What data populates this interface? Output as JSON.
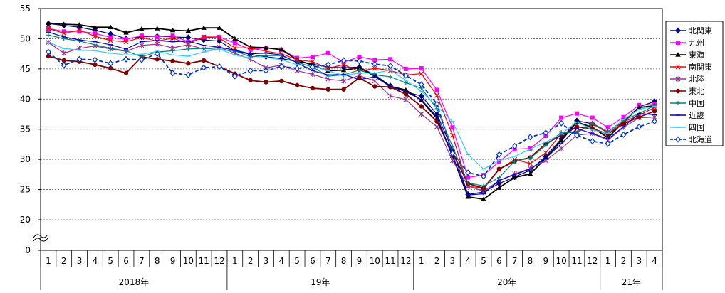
{
  "chart_data": {
    "type": "line",
    "ylim": [
      0,
      55
    ],
    "yticks": [
      0,
      20,
      25,
      30,
      35,
      40,
      45,
      50,
      55
    ],
    "y_axis_break": [
      1,
      19
    ],
    "grid": true,
    "legend_position": "right",
    "x_tick_labels": [
      "1",
      "2",
      "3",
      "4",
      "5",
      "6",
      "7",
      "8",
      "9",
      "10",
      "11",
      "12",
      "1",
      "2",
      "3",
      "4",
      "5",
      "6",
      "7",
      "8",
      "9",
      "10",
      "11",
      "12",
      "1",
      "2",
      "3",
      "4",
      "5",
      "6",
      "7",
      "8",
      "9",
      "10",
      "11",
      "12",
      "1",
      "2",
      "3",
      "4"
    ],
    "year_groups": [
      {
        "label": "2018年",
        "count": 12
      },
      {
        "label": "19年",
        "count": 12
      },
      {
        "label": "20年",
        "count": 12
      },
      {
        "label": "21年",
        "count": 4
      }
    ],
    "series": [
      {
        "name": "北関東",
        "color": "#000080",
        "marker": "diamond",
        "dashed": false,
        "values": [
          52.5,
          52.2,
          51.9,
          51.4,
          50.8,
          50.0,
          50.3,
          50.4,
          50.3,
          50.2,
          49.8,
          49.6,
          48.0,
          47.4,
          47.0,
          46.7,
          46.2,
          45.8,
          45.3,
          45.2,
          45.3,
          44.0,
          42.2,
          41.2,
          40.5,
          37.5,
          31.5,
          24.2,
          24.6,
          26.0,
          27.1,
          28.2,
          30.5,
          33.4,
          36.4,
          35.9,
          34.4,
          36.3,
          38.7,
          39.6
        ]
      },
      {
        "name": "九州",
        "color": "#ff00ff",
        "marker": "square",
        "dashed": false,
        "values": [
          51.7,
          51.2,
          51.2,
          50.9,
          50.2,
          49.9,
          50.5,
          50.3,
          50.5,
          49.5,
          50.3,
          50.3,
          49.3,
          48.2,
          48.5,
          48.2,
          46.8,
          47.0,
          47.6,
          46.1,
          47.0,
          46.5,
          46.6,
          45.0,
          45.1,
          41.5,
          35.3,
          27.0,
          27.4,
          29.6,
          31.7,
          31.8,
          33.9,
          36.9,
          37.6,
          36.9,
          35.3,
          37.0,
          39.0,
          39.1
        ]
      },
      {
        "name": "東海",
        "color": "#000000",
        "marker": "triangle",
        "dashed": false,
        "values": [
          52.6,
          52.4,
          52.3,
          51.9,
          51.9,
          51.0,
          51.6,
          51.7,
          51.4,
          51.3,
          51.8,
          51.8,
          50.0,
          48.6,
          48.5,
          48.2,
          46.5,
          45.6,
          44.7,
          44.8,
          45.2,
          43.8,
          42.1,
          41.5,
          39.8,
          36.8,
          30.6,
          23.8,
          23.4,
          25.3,
          27.0,
          27.6,
          30.2,
          33.1,
          36.2,
          35.3,
          33.6,
          36.2,
          38.6,
          38.9
        ]
      },
      {
        "name": "南関東",
        "color": "#ff0000",
        "marker": "x",
        "dashed": false,
        "values": [
          51.7,
          50.9,
          51.4,
          50.4,
          49.7,
          49.5,
          50.2,
          49.6,
          50.1,
          49.2,
          50.3,
          50.1,
          48.5,
          48.5,
          47.9,
          47.5,
          46.5,
          46.2,
          45.1,
          45.7,
          44.6,
          45.1,
          44.7,
          44.0,
          44.2,
          40.6,
          34.0,
          25.5,
          25.3,
          28.3,
          30.0,
          29.3,
          31.1,
          34.3,
          34.6,
          35.9,
          34.4,
          36.2,
          37.3,
          38.6
        ]
      },
      {
        "name": "北陸",
        "color": "#993399",
        "marker": "star",
        "dashed": false,
        "values": [
          49.4,
          47.6,
          48.4,
          48.8,
          48.3,
          47.9,
          48.9,
          49.1,
          48.5,
          49.0,
          48.3,
          48.6,
          47.6,
          46.6,
          45.2,
          45.6,
          44.7,
          44.1,
          43.3,
          43.0,
          43.9,
          43.0,
          40.5,
          39.9,
          37.5,
          35.4,
          29.8,
          25.6,
          24.7,
          26.5,
          27.6,
          28.5,
          29.8,
          31.8,
          34.0,
          34.3,
          33.2,
          35.3,
          36.9,
          37.0
        ]
      },
      {
        "name": "東北",
        "color": "#800000",
        "marker": "circle",
        "dashed": false,
        "values": [
          47.1,
          46.4,
          46.2,
          45.7,
          45.1,
          44.3,
          47.0,
          46.6,
          46.3,
          45.9,
          46.4,
          45.4,
          44.2,
          43.1,
          42.8,
          43.0,
          42.3,
          41.8,
          41.6,
          41.6,
          43.5,
          42.1,
          42.0,
          40.8,
          38.8,
          36.3,
          31.1,
          26.0,
          25.2,
          28.4,
          29.7,
          30.3,
          32.6,
          34.0,
          35.4,
          35.1,
          34.2,
          35.9,
          37.0,
          38.0
        ]
      },
      {
        "name": "中国",
        "color": "#008080",
        "marker": "plus",
        "dashed": false,
        "values": [
          50.6,
          50.0,
          49.6,
          49.0,
          48.4,
          48.0,
          47.0,
          47.8,
          48.0,
          48.3,
          48.4,
          48.2,
          48.0,
          47.0,
          47.2,
          47.2,
          46.1,
          45.3,
          43.8,
          44.0,
          44.8,
          44.0,
          43.7,
          42.7,
          41.8,
          38.4,
          32.1,
          26.1,
          25.6,
          27.0,
          29.7,
          30.2,
          32.3,
          34.5,
          34.4,
          36.0,
          34.6,
          36.5,
          37.6,
          38.9
        ]
      },
      {
        "name": "近畿",
        "color": "#0000cc",
        "marker": "dash",
        "dashed": false,
        "values": [
          51.1,
          50.3,
          49.8,
          49.5,
          49.0,
          48.3,
          49.5,
          49.7,
          49.5,
          49.6,
          48.9,
          48.6,
          48.1,
          47.5,
          47.6,
          47.3,
          46.0,
          44.7,
          44.0,
          44.1,
          43.2,
          43.7,
          42.1,
          41.2,
          39.9,
          37.1,
          30.6,
          24.1,
          24.3,
          26.5,
          27.5,
          28.4,
          30.2,
          32.6,
          35.1,
          34.3,
          33.4,
          35.4,
          37.6,
          37.4
        ]
      },
      {
        "name": "四国",
        "color": "#33ccff",
        "marker": "dash",
        "dashed": false,
        "values": [
          49.4,
          48.4,
          48.1,
          48.0,
          47.6,
          47.3,
          47.4,
          47.9,
          47.3,
          47.1,
          47.8,
          48.3,
          47.3,
          46.8,
          46.9,
          46.5,
          45.7,
          45.6,
          44.7,
          43.9,
          44.3,
          44.3,
          44.8,
          43.1,
          41.3,
          38.8,
          36.3,
          30.8,
          28.4,
          29.8,
          30.5,
          31.7,
          32.9,
          34.2,
          36.2,
          34.9,
          34.3,
          36.6,
          38.3,
          38.8
        ]
      },
      {
        "name": "北海道",
        "color": "#0033cc",
        "marker": "diamond-open",
        "dashed": true,
        "values": [
          47.8,
          45.6,
          46.6,
          46.5,
          45.9,
          46.6,
          46.5,
          47.5,
          44.3,
          44.0,
          45.2,
          45.4,
          43.8,
          44.7,
          44.7,
          45.4,
          45.1,
          45.3,
          45.7,
          46.4,
          46.3,
          45.8,
          45.5,
          43.9,
          42.4,
          39.2,
          31.0,
          27.8,
          27.2,
          30.8,
          32.2,
          33.7,
          34.4,
          36.0,
          34.0,
          33.0,
          32.6,
          34.1,
          35.4,
          36.3
        ]
      }
    ]
  }
}
